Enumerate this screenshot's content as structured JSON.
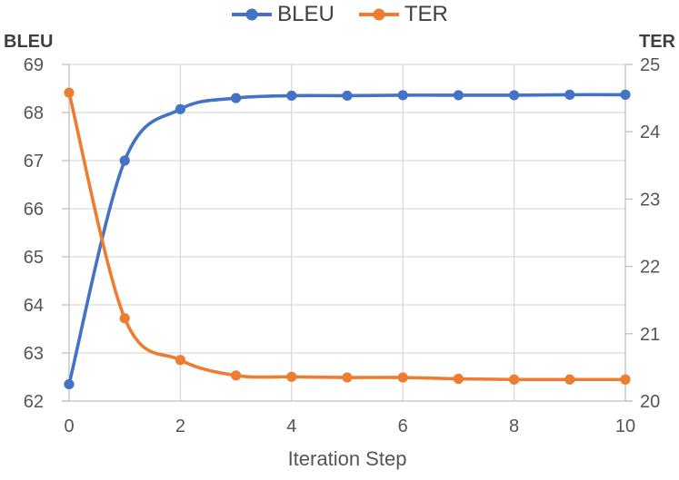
{
  "chart_data": {
    "type": "line",
    "x": [
      0,
      1,
      2,
      3,
      4,
      5,
      6,
      7,
      8,
      9,
      10
    ],
    "series": [
      {
        "name": "BLEU",
        "axis": "left",
        "color": "#4472C4",
        "marker": "circle",
        "values": [
          62.35,
          67.0,
          68.07,
          68.3,
          68.35,
          68.35,
          68.36,
          68.36,
          68.36,
          68.37,
          68.37
        ]
      },
      {
        "name": "TER",
        "axis": "right",
        "color": "#ED7D31",
        "marker": "circle",
        "values": [
          24.58,
          21.23,
          20.61,
          20.38,
          20.36,
          20.35,
          20.35,
          20.33,
          20.32,
          20.32,
          20.32
        ]
      }
    ],
    "xlabel": "Iteration Step",
    "xlim": [
      0,
      10
    ],
    "x_ticks": [
      0,
      2,
      4,
      6,
      8,
      10
    ],
    "left_axis": {
      "label": "BLEU",
      "min": 62,
      "max": 69,
      "step": 1
    },
    "right_axis": {
      "label": "TER",
      "min": 20,
      "max": 25,
      "step": 1
    },
    "grid": true,
    "smooth": true,
    "legend_position": "top-center",
    "colors": {
      "grid": "#D9D9D9",
      "axis": "#BFBFBF",
      "tick_label": "#555555",
      "axis_title": "#3F3F3F",
      "background": "#FFFFFF"
    }
  }
}
